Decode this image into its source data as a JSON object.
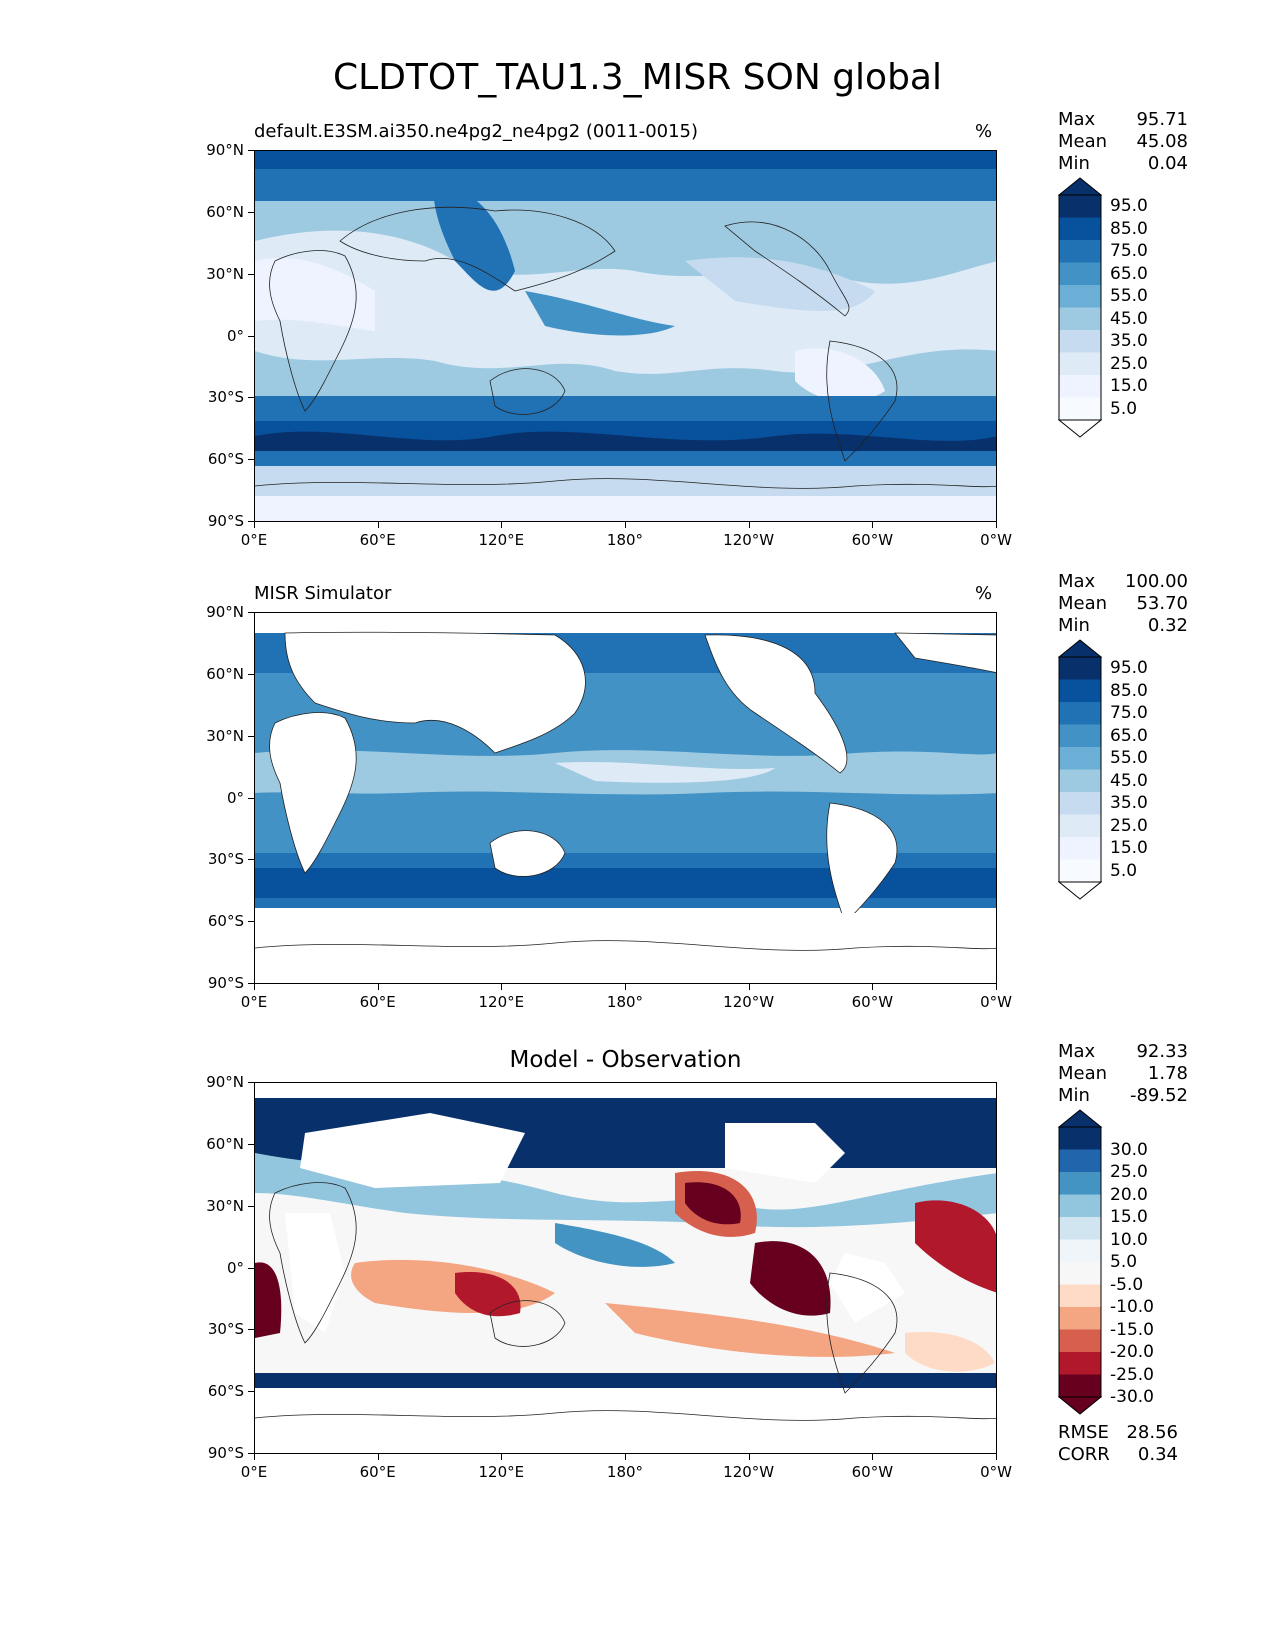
{
  "figure": {
    "title": "CLDTOT_TAU1.3_MISR SON global"
  },
  "axes": {
    "lat_ticks": [
      "90°N",
      "60°N",
      "30°N",
      "0°",
      "30°S",
      "60°S",
      "90°S"
    ],
    "lon_ticks": [
      "0°E",
      "60°E",
      "120°E",
      "180°",
      "120°W",
      "60°W",
      "0°W"
    ]
  },
  "chart_data": [
    {
      "type": "heatmap",
      "title_left": "default.E3SM.ai350.ne4pg2_ne4pg2 (0011-0015)",
      "title_right": "%",
      "stats": {
        "max_label": "Max",
        "max": "95.71",
        "mean_label": "Mean",
        "mean": "45.08",
        "min_label": "Min",
        "min": "0.04"
      },
      "colorbar": {
        "labels": [
          "95.0",
          "85.0",
          "75.0",
          "65.0",
          "55.0",
          "45.0",
          "35.0",
          "25.0",
          "15.0",
          "5.0"
        ],
        "colors": [
          "#08306b",
          "#08519c",
          "#2171b5",
          "#4292c6",
          "#6baed6",
          "#9ecae1",
          "#c6dbef",
          "#deebf7",
          "#eff3ff",
          "#f7fbff"
        ],
        "extend_top": "#08306b",
        "extend_bottom": "#ffffff"
      }
    },
    {
      "type": "heatmap",
      "title_left": "MISR Simulator",
      "title_right": "%",
      "stats": {
        "max_label": "Max",
        "max": "100.00",
        "mean_label": "Mean",
        "mean": "53.70",
        "min_label": "Min",
        "min": "0.32"
      },
      "colorbar": {
        "labels": [
          "95.0",
          "85.0",
          "75.0",
          "65.0",
          "55.0",
          "45.0",
          "35.0",
          "25.0",
          "15.0",
          "5.0"
        ],
        "colors": [
          "#08306b",
          "#08519c",
          "#2171b5",
          "#4292c6",
          "#6baed6",
          "#9ecae1",
          "#c6dbef",
          "#deebf7",
          "#eff3ff",
          "#f7fbff"
        ],
        "extend_top": "#08306b",
        "extend_bottom": "#ffffff"
      }
    },
    {
      "type": "heatmap",
      "title_center": "Model - Observation",
      "stats": {
        "max_label": "Max",
        "max": "92.33",
        "mean_label": "Mean",
        "mean": "1.78",
        "min_label": "Min",
        "min": "-89.52"
      },
      "colorbar": {
        "labels": [
          "30.0",
          "25.0",
          "20.0",
          "15.0",
          "10.0",
          "5.0",
          "-5.0",
          "-10.0",
          "-15.0",
          "-20.0",
          "-25.0",
          "-30.0"
        ],
        "colors": [
          "#08306b",
          "#2166ac",
          "#4393c3",
          "#92c5de",
          "#d1e5f0",
          "#f0f5f9",
          "#f7f7f7",
          "#fddbc7",
          "#f4a582",
          "#d6604d",
          "#b2182b",
          "#67001f"
        ],
        "extend_top": "#08306b",
        "extend_bottom": "#67001f"
      },
      "metrics": {
        "rmse_label": "RMSE",
        "rmse": "28.56",
        "corr_label": "CORR",
        "corr": "0.34"
      }
    }
  ]
}
